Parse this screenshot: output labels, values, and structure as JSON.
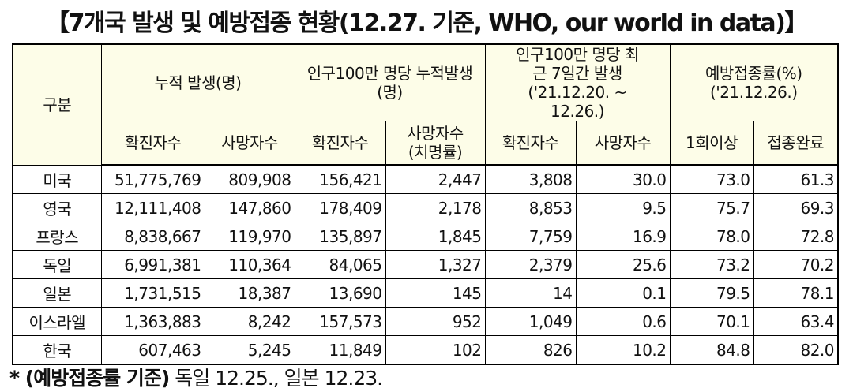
{
  "header": {
    "title": "【7개국 발생 및 예방접종 현황(12.27. 기준, WHO, our world in data)】"
  },
  "table": {
    "group_headers": [
      "구분",
      "누적 발생(명)",
      "인구100만 명당  누적발생(명)",
      "인구100만 명당 최근 7일간 발생 ('21.12.20. ~ 12.26.)",
      "예방접종률(%) ('21.12.26.)"
    ],
    "sub_headers": [
      "확진자수",
      "사망자수",
      "확진자수",
      "사망자수",
      "(치명률)",
      "확진자수",
      "사망자수",
      "1회이상",
      "접종완료"
    ],
    "rows": [
      [
        "미국",
        "51,775,769",
        "809,908",
        "156,421",
        "2,447",
        "3,808",
        "30.0",
        "73.0",
        "61.3"
      ],
      [
        "영국",
        "12,111,408",
        "147,860",
        "178,409",
        "2,178",
        "8,853",
        "9.5",
        "75.7",
        "69.3"
      ],
      [
        "프랑스",
        "8,838,667",
        "119,970",
        "135,897",
        "1,845",
        "7,759",
        "16.9",
        "78.0",
        "72.8"
      ],
      [
        "독일",
        "6,991,381",
        "110,364",
        "84,065",
        "1,327",
        "2,379",
        "25.6",
        "73.2",
        "70.2"
      ],
      [
        "일본",
        "1,731,515",
        "18,387",
        "13,690",
        "145",
        "14",
        "0.1",
        "79.5",
        "78.1"
      ],
      [
        "이스라엘",
        "1,363,883",
        "8,242",
        "157,573",
        "952",
        "1,049",
        "0.6",
        "70.1",
        "63.4"
      ],
      [
        "한국",
        "607,463",
        "5,245",
        "11,849",
        "102",
        "826",
        "10.2",
        "84.8",
        "82.0"
      ]
    ]
  },
  "footnote": {
    "bold": "* (예방접종률 기준)",
    "text": " 독일 12.25., 일본 12.23."
  }
}
